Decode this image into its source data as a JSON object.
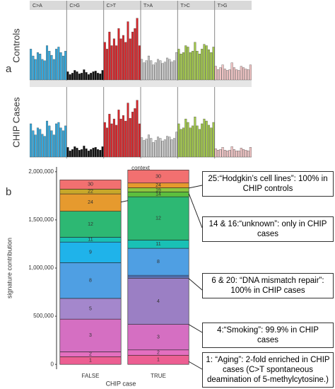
{
  "panel_labels": [
    "a",
    "b"
  ],
  "chart_data": [
    {
      "type": "spectrum",
      "x_label": "context",
      "ylim": [
        0,
        100
      ],
      "facets": [
        {
          "name": "C>A",
          "color": "#35a8dc"
        },
        {
          "name": "C>G",
          "color": "#111111"
        },
        {
          "name": "C>T",
          "color": "#d7262b"
        },
        {
          "name": "T>A",
          "color": "#c9c9c9"
        },
        {
          "name": "T>C",
          "color": "#a1c74a"
        },
        {
          "name": "T>G",
          "color": "#f0c4c4"
        }
      ],
      "series": [
        {
          "name": "Controls",
          "values": [
            45,
            35,
            30,
            40,
            38,
            30,
            28,
            50,
            42,
            36,
            30,
            45,
            48,
            40,
            35,
            42,
            12,
            8,
            10,
            14,
            12,
            9,
            10,
            15,
            11,
            8,
            10,
            12,
            13,
            10,
            9,
            14,
            55,
            45,
            70,
            50,
            60,
            50,
            75,
            60,
            65,
            55,
            85,
            60,
            70,
            75,
            90,
            50,
            30,
            25,
            28,
            35,
            28,
            22,
            25,
            30,
            28,
            24,
            26,
            32,
            30,
            26,
            28,
            40,
            45,
            38,
            40,
            50,
            48,
            40,
            42,
            55,
            42,
            38,
            45,
            52,
            50,
            44,
            40,
            48,
            20,
            15,
            18,
            22,
            16,
            14,
            15,
            25,
            18,
            15,
            14,
            20,
            18,
            16,
            15,
            22
          ]
        },
        {
          "name": "CHIP Cases",
          "values": [
            48,
            38,
            32,
            42,
            40,
            33,
            30,
            52,
            45,
            38,
            32,
            48,
            50,
            42,
            38,
            45,
            14,
            9,
            11,
            15,
            13,
            10,
            11,
            16,
            12,
            9,
            11,
            13,
            14,
            11,
            10,
            15,
            50,
            42,
            62,
            48,
            55,
            46,
            68,
            55,
            60,
            52,
            78,
            56,
            65,
            70,
            82,
            48,
            28,
            24,
            26,
            32,
            27,
            21,
            24,
            29,
            27,
            23,
            25,
            30,
            29,
            25,
            27,
            36,
            48,
            40,
            42,
            55,
            50,
            42,
            45,
            58,
            45,
            40,
            48,
            55,
            52,
            46,
            42,
            50,
            12,
            10,
            11,
            14,
            10,
            9,
            10,
            15,
            11,
            9,
            9,
            13,
            11,
            10,
            9,
            14
          ]
        }
      ]
    },
    {
      "type": "stacked_bar",
      "x_label": "CHIP case",
      "y_label": "signature contribution",
      "categories": [
        "FALSE",
        "TRUE"
      ],
      "ylim": [
        -50000,
        2050000
      ],
      "yticks": [
        0,
        {
          "value": 500000,
          "label": "500,000"
        },
        {
          "value": 1000000,
          "label": "1,000,000"
        },
        {
          "value": 1500000,
          "label": "1,500,000"
        },
        {
          "value": 2000000,
          "label": "2,000,000"
        }
      ],
      "stacks": [
        [
          {
            "name": "1",
            "value": 80000,
            "color": "#ec5f92"
          },
          {
            "name": "2",
            "value": 50000,
            "color": "#e46fc0"
          },
          {
            "name": "3",
            "value": 340000,
            "color": "#d56fc2"
          },
          {
            "name": "5",
            "value": 215000,
            "color": "#a487cc"
          },
          {
            "name": "8",
            "value": 370000,
            "color": "#4f9fe3"
          },
          {
            "name": "9",
            "value": 215000,
            "color": "#1fb3ea"
          },
          {
            "name": "11",
            "value": 50000,
            "color": "#19c0b5"
          },
          {
            "name": "12",
            "value": 270000,
            "color": "#2db873"
          },
          {
            "name": "24",
            "value": 180000,
            "color": "#e69a2e"
          },
          {
            "name": "22",
            "value": 50000,
            "color": "#c8a82a"
          },
          {
            "name": "30",
            "value": 95000,
            "color": "#f27070"
          }
        ],
        [
          {
            "name": "1",
            "value": 95000,
            "color": "#ec5f92"
          },
          {
            "name": "2",
            "value": 55000,
            "color": "#e46fc0"
          },
          {
            "name": "3",
            "value": 265000,
            "color": "#d56fc2"
          },
          {
            "name": "4",
            "value": 480000,
            "color": "#9b7fc4"
          },
          {
            "name": "6",
            "value": 15000,
            "color": "#6f86da"
          },
          {
            "name": "20",
            "value": 15000,
            "color": "#5a8de0"
          },
          {
            "name": "8",
            "value": 280000,
            "color": "#4f9fe3"
          },
          {
            "name": "11",
            "value": 85000,
            "color": "#19c0b5"
          },
          {
            "name": "12",
            "value": 450000,
            "color": "#2db873"
          },
          {
            "name": "14",
            "value": 50000,
            "color": "#5cbf3e"
          },
          {
            "name": "16",
            "value": 43000,
            "color": "#8cc63f"
          },
          {
            "name": "24",
            "value": 50000,
            "color": "#e69a2e"
          },
          {
            "name": "30",
            "value": 135000,
            "color": "#f27070"
          }
        ]
      ],
      "annotations": [
        "25:“Hodgkin’s cell lines”: 100% in CHIP controls",
        "14 & 16:“unknown”: only in CHIP cases",
        "6 & 20: “DNA mismatch repair”: 100% in CHIP cases",
        "4:“Smoking”: 99.9% in CHIP cases",
        "1: “Aging”: 2-fold enriched in CHIP cases (C>T spontaneous deamination of 5-methylcytosine.)"
      ]
    }
  ]
}
